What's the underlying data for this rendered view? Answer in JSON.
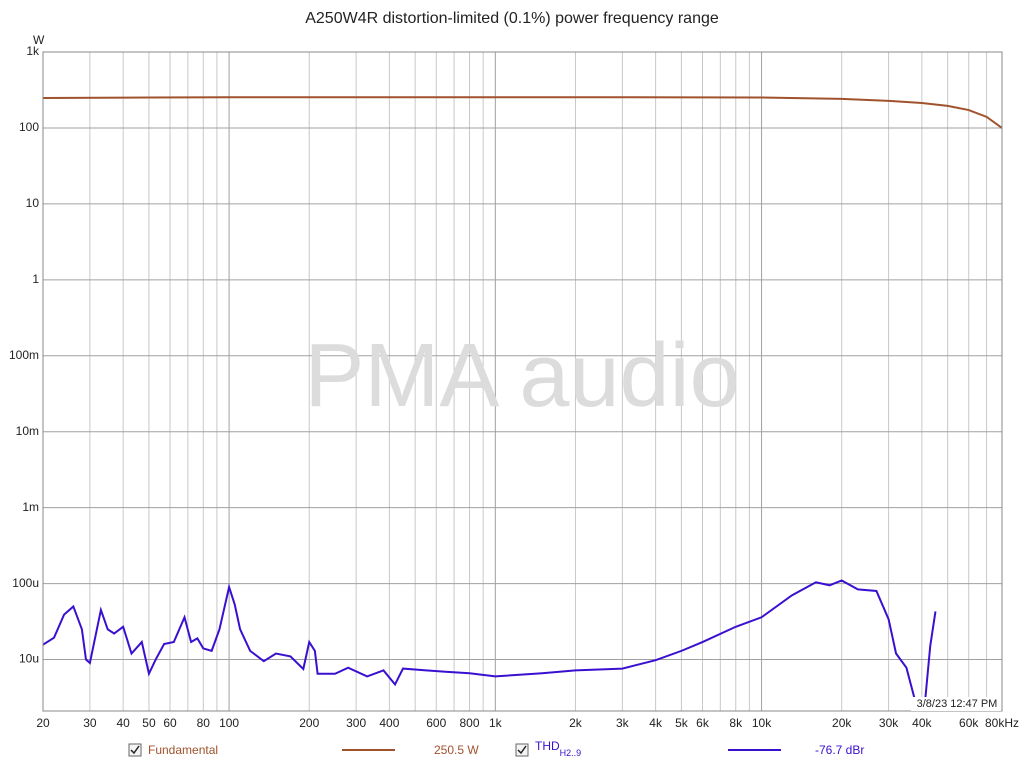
{
  "chart_data": {
    "type": "line",
    "title": "A250W4R distortion-limited (0.1%) power frequency range",
    "y_label": "W",
    "watermark": "PMA audio",
    "timestamp": "3/8/23 12:47 PM",
    "log_x": true,
    "log_y": true,
    "grid": true,
    "xlim": [
      20,
      80000
    ],
    "ylim": [
      2.1e-06,
      1000
    ],
    "xticks": [
      20,
      30,
      40,
      50,
      60,
      {
        "value": 70,
        "label": null
      },
      80,
      {
        "value": 90,
        "label": null
      },
      {
        "value": 100,
        "label": "100"
      },
      200,
      300,
      400,
      {
        "value": 500,
        "label": null
      },
      600,
      {
        "value": 700,
        "label": null
      },
      800,
      {
        "value": 900,
        "label": null
      },
      {
        "value": 1000,
        "label": "1k"
      },
      {
        "value": 2000,
        "label": "2k"
      },
      {
        "value": 3000,
        "label": "3k"
      },
      {
        "value": 4000,
        "label": "4k"
      },
      {
        "value": 5000,
        "label": "5k"
      },
      {
        "value": 6000,
        "label": "6k"
      },
      {
        "value": 7000,
        "label": null
      },
      {
        "value": 8000,
        "label": "8k"
      },
      {
        "value": 9000,
        "label": null
      },
      {
        "value": 10000,
        "label": "10k"
      },
      {
        "value": 20000,
        "label": "20k"
      },
      {
        "value": 30000,
        "label": "30k"
      },
      {
        "value": 40000,
        "label": "40k"
      },
      {
        "value": 50000,
        "label": null
      },
      {
        "value": 60000,
        "label": "60k"
      },
      {
        "value": 70000,
        "label": null
      },
      {
        "value": 80000,
        "label": "80kHz"
      }
    ],
    "yticks": [
      {
        "value": 1e-05,
        "label": "10u"
      },
      {
        "value": 0.0001,
        "label": "100u"
      },
      {
        "value": 0.001,
        "label": "1m"
      },
      {
        "value": 0.01,
        "label": "10m"
      },
      {
        "value": 0.1,
        "label": "100m"
      },
      1,
      10,
      100,
      {
        "value": 1000,
        "label": "1k"
      }
    ],
    "series": [
      {
        "name": "Fundamental",
        "color": "#a0522d",
        "legend_value": "250.5 W",
        "x": [
          20,
          50,
          100,
          300,
          1000,
          3000,
          10000,
          20000,
          30000,
          40000,
          50000,
          60000,
          70000,
          80000
        ],
        "values": [
          248,
          252,
          254,
          254,
          254,
          254,
          252,
          241,
          227,
          213,
          195,
          172,
          140,
          100
        ]
      },
      {
        "name": "THD",
        "name_subscript": "H2..9",
        "color": "#3a10d0",
        "legend_value": "-76.7 dBr",
        "x": [
          20,
          22,
          24,
          26,
          28,
          29,
          30,
          33,
          35,
          37,
          40,
          43,
          47,
          50,
          53,
          57,
          62,
          68,
          72,
          76,
          80,
          86,
          92,
          100,
          105,
          110,
          120,
          135,
          150,
          170,
          190,
          200,
          210,
          215,
          250,
          280,
          330,
          380,
          420,
          450,
          550,
          650,
          800,
          1000,
          1500,
          2000,
          3000,
          4000,
          5000,
          6000,
          8000,
          10000,
          13000,
          16000,
          18000,
          20000,
          23000,
          27000,
          30000,
          32000,
          35000,
          38500,
          39500,
          41000,
          43000,
          45000
        ],
        "values": [
          1.57e-05,
          1.94e-05,
          3.9e-05,
          5e-05,
          2.5e-05,
          1e-05,
          9e-06,
          4.5e-05,
          2.5e-05,
          2.2e-05,
          2.7e-05,
          1.2e-05,
          1.7e-05,
          6.5e-06,
          1e-05,
          1.6e-05,
          1.7e-05,
          3.6e-05,
          1.7e-05,
          1.9e-05,
          1.4e-05,
          1.3e-05,
          2.5e-05,
          9e-05,
          5.3e-05,
          2.5e-05,
          1.3e-05,
          9.5e-06,
          1.2e-05,
          1.1e-05,
          7.5e-06,
          1.7e-05,
          1.3e-05,
          6.5e-06,
          6.5e-06,
          7.8e-06,
          6e-06,
          7.2e-06,
          4.7e-06,
          7.6e-06,
          7.2e-06,
          6.9e-06,
          6.6e-06,
          6e-06,
          6.6e-06,
          7.2e-06,
          7.6e-06,
          9.8e-06,
          1.3e-05,
          1.7e-05,
          2.7e-05,
          3.6e-05,
          7e-05,
          0.000104,
          9.5e-05,
          0.00011,
          8.4e-05,
          8e-05,
          3.4e-05,
          1.2e-05,
          7.8e-06,
          2.2e-06,
          null,
          2.5e-06,
          1.5e-05,
          4.3e-05
        ]
      }
    ]
  }
}
